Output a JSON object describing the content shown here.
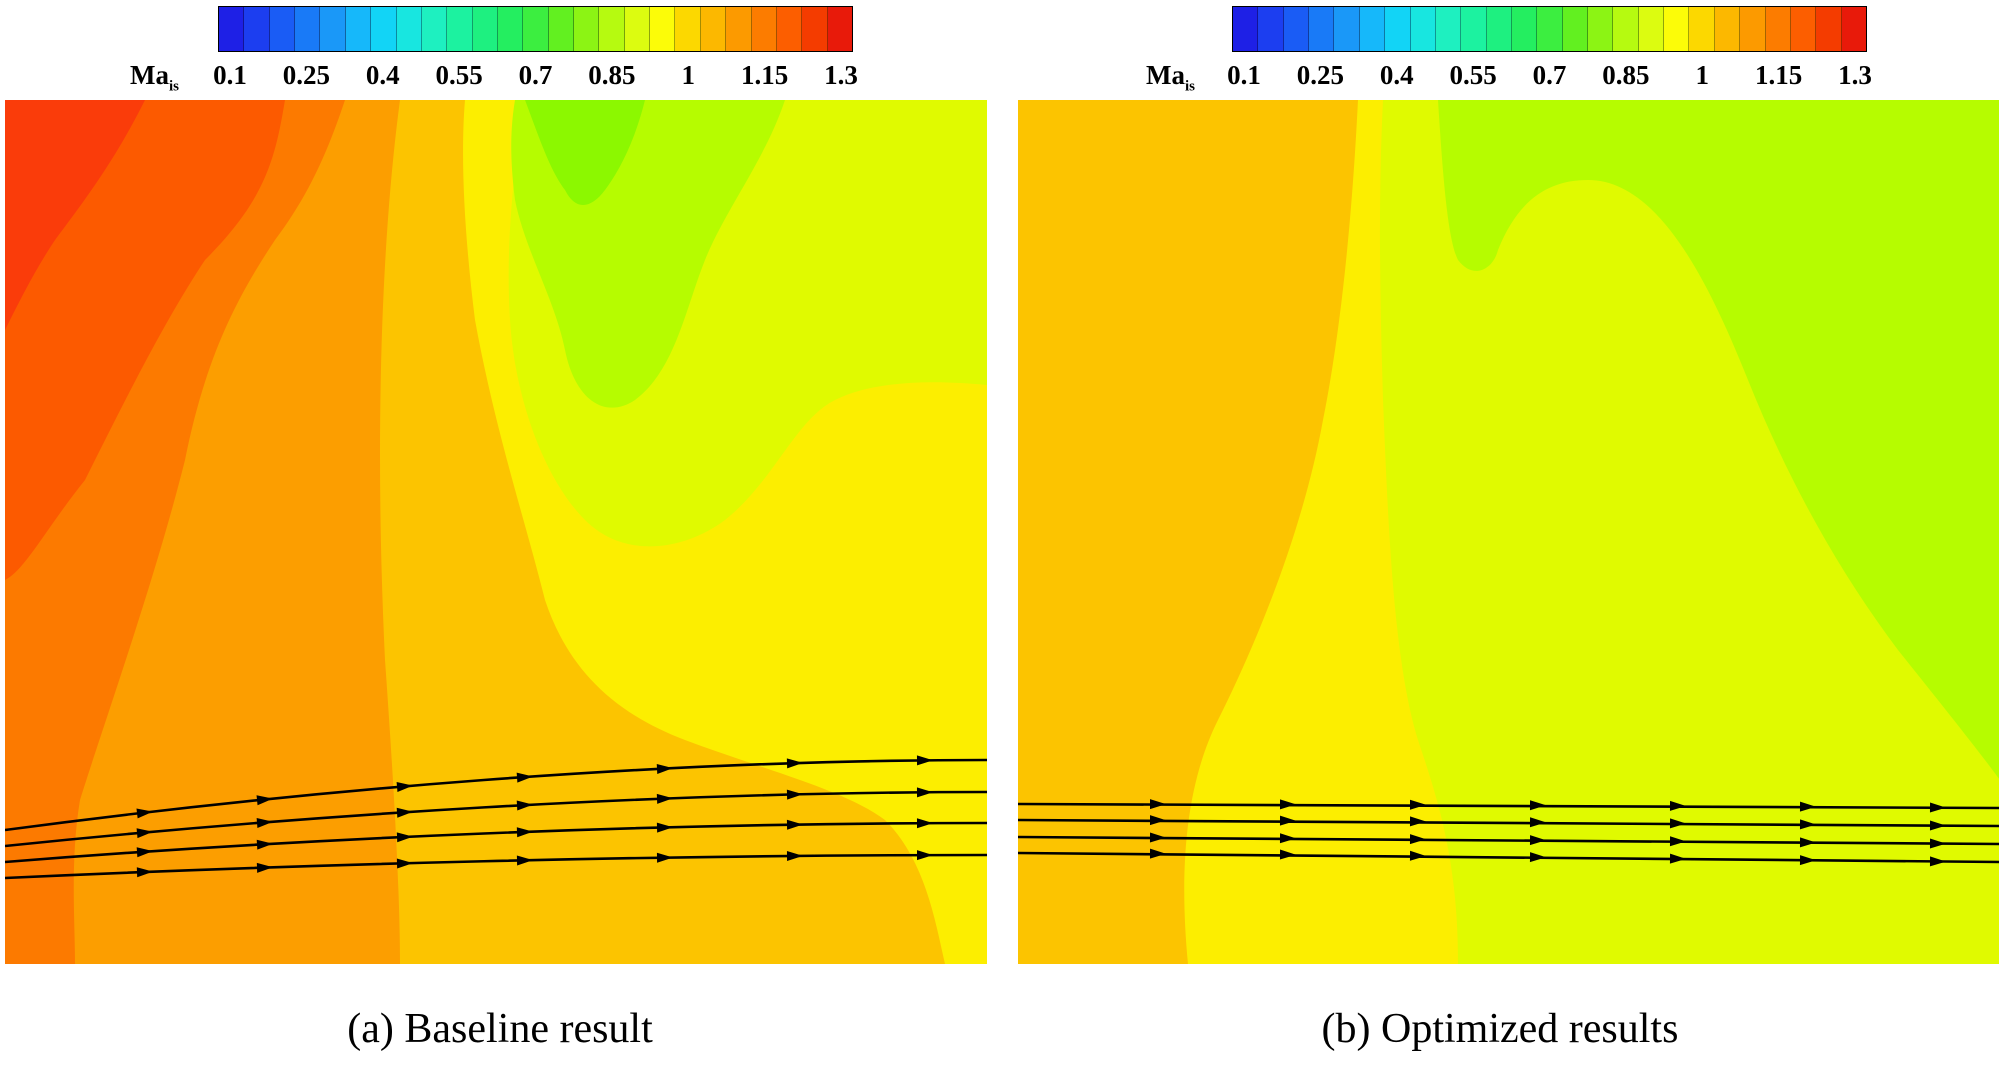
{
  "chart_data": [
    {
      "type": "heatmap",
      "panel": "a",
      "title": "(a) Baseline result",
      "colorbar": {
        "variable": "Ma",
        "subscript": "is",
        "ticks": [
          "0.1",
          "0.25",
          "0.4",
          "0.55",
          "0.7",
          "0.85",
          "1",
          "1.15",
          "1.3"
        ],
        "range": [
          0.1,
          1.3
        ],
        "levels": 25,
        "colors": [
          "#1e20e6",
          "#1c3ef0",
          "#1a5cf5",
          "#197af7",
          "#1a98f8",
          "#16b8fa",
          "#12d4f6",
          "#18e6e0",
          "#1ef0c0",
          "#1cf2a0",
          "#1ef080",
          "#24ee60",
          "#3cee40",
          "#62f020",
          "#8cf414",
          "#b6fa10",
          "#dcfc10",
          "#fcfc08",
          "#fcd800",
          "#fcb800",
          "#fc9a00",
          "#fc7c00",
          "#fc5e00",
          "#f43c00",
          "#e81a0a"
        ]
      },
      "field": {
        "description_levels": "Mach number contours, high (>1.2) at top-left, decreasing toward right",
        "level_values": [
          1.25,
          1.2,
          1.15,
          1.1,
          1.05,
          1.0,
          0.95,
          0.9
        ]
      },
      "streamlines": 4
    },
    {
      "type": "heatmap",
      "panel": "b",
      "title": "(b) Optimized results",
      "colorbar": {
        "variable": "Ma",
        "subscript": "is",
        "ticks": [
          "0.1",
          "0.25",
          "0.4",
          "0.55",
          "0.7",
          "0.85",
          "1",
          "1.15",
          "1.3"
        ],
        "range": [
          0.1,
          1.3
        ],
        "levels": 25,
        "colors": [
          "#1e20e6",
          "#1c3ef0",
          "#1a5cf5",
          "#197af7",
          "#1a98f8",
          "#16b8fa",
          "#12d4f6",
          "#18e6e0",
          "#1ef0c0",
          "#1cf2a0",
          "#1ef080",
          "#24ee60",
          "#3cee40",
          "#62f020",
          "#8cf414",
          "#b6fa10",
          "#dcfc10",
          "#fcfc08",
          "#fcd800",
          "#fcb800",
          "#fc9a00",
          "#fc7c00",
          "#fc5e00",
          "#f43c00",
          "#e81a0a"
        ]
      },
      "field": {
        "level_values": [
          1.1,
          1.05,
          1.0,
          0.95,
          0.9
        ]
      },
      "streamlines": 4
    }
  ],
  "palette": {
    "ma_125": "#fa3c0a",
    "ma_120": "#fc5a00",
    "ma_115": "#fc7a00",
    "ma_110": "#fc9e00",
    "ma_105": "#fcc400",
    "ma_100": "#fcee00",
    "ma_095": "#e0fa00",
    "ma_090": "#b6fc00",
    "ma_085": "#8cf800"
  }
}
